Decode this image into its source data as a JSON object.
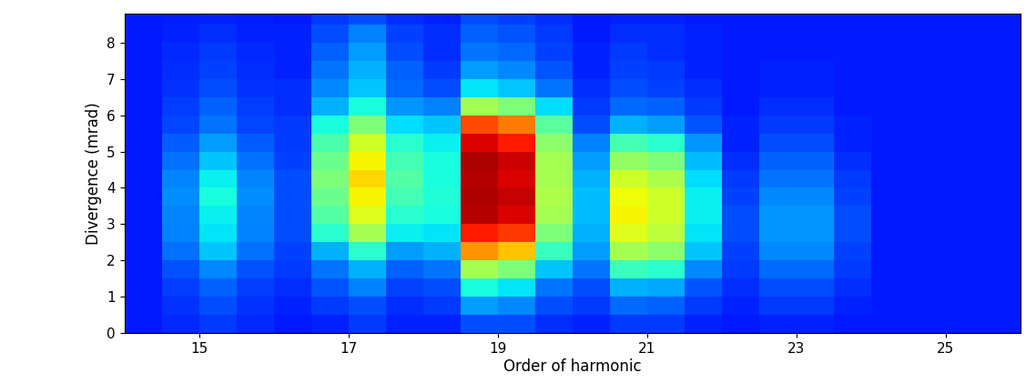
{
  "chart_data": {
    "type": "heatmap",
    "x_label": "Order of harmonic",
    "y_label": "Divergence (mrad)",
    "xlim": [
      14,
      26
    ],
    "ylim": [
      0,
      8.8
    ],
    "xticks": [
      15,
      17,
      19,
      21,
      23,
      25
    ],
    "yticks": [
      0,
      1,
      2,
      3,
      4,
      5,
      6,
      7,
      8
    ],
    "x_edges": [
      14,
      14.5,
      15,
      15.5,
      16,
      16.5,
      17,
      17.5,
      18,
      18.5,
      19,
      19.5,
      20,
      20.5,
      21,
      21.5,
      22,
      22.5,
      23,
      23.5,
      24,
      24.5,
      25,
      25.5,
      26
    ],
    "y_edges": [
      0,
      0.5,
      1,
      1.5,
      2,
      2.5,
      3,
      3.5,
      4,
      4.5,
      5,
      5.5,
      6,
      6.5,
      7,
      7.5,
      8,
      8.5,
      9
    ],
    "color_range": [
      0,
      10
    ],
    "cells_by_column": [
      [
        1.5,
        1.5,
        1.5,
        1.5,
        1.5,
        1.5,
        1.5,
        1.5,
        1.5,
        1.5,
        1.5,
        1.5,
        1.5,
        1.5,
        1.5,
        1.5,
        1.5,
        1.5
      ],
      [
        1.65,
        1.75,
        1.85,
        2.05,
        2.35,
        2.5,
        2.55,
        2.65,
        2.55,
        2.35,
        2.15,
        1.95,
        1.85,
        1.75,
        1.7,
        1.65,
        1.6,
        1.55
      ],
      [
        1.8,
        2.0,
        2.2,
        2.6,
        3.2,
        3.5,
        3.6,
        3.8,
        3.6,
        3.2,
        2.8,
        2.4,
        2.2,
        2.0,
        1.9,
        1.8,
        1.7,
        1.6
      ],
      [
        1.65,
        1.75,
        1.85,
        2.05,
        2.35,
        2.5,
        2.55,
        2.65,
        2.55,
        2.35,
        2.15,
        1.95,
        1.85,
        1.75,
        1.7,
        1.65,
        1.6,
        1.55
      ],
      [
        1.5,
        1.6,
        1.7,
        1.8,
        1.9,
        2.0,
        2.0,
        2.0,
        2.0,
        1.9,
        1.8,
        1.8,
        1.7,
        1.7,
        1.6,
        1.6,
        1.6,
        1.5
      ],
      [
        1.6,
        1.8,
        2.1,
        2.4,
        3.0,
        4.0,
        4.5,
        4.8,
        5.0,
        4.8,
        4.4,
        3.8,
        3.0,
        2.6,
        2.4,
        2.2,
        2.0,
        1.8
      ],
      [
        1.8,
        2.0,
        2.5,
        3.0,
        4.0,
        5.5,
        6.2,
        6.5,
        6.8,
        6.5,
        6.0,
        5.0,
        3.8,
        3.2,
        3.0,
        2.8,
        2.5,
        2.0
      ],
      [
        1.6,
        1.7,
        1.9,
        2.2,
        2.8,
        3.6,
        4.0,
        4.3,
        4.5,
        4.3,
        4.0,
        3.4,
        2.7,
        2.3,
        2.2,
        2.0,
        1.9,
        1.7
      ],
      [
        1.6,
        1.8,
        2.0,
        2.4,
        3.0,
        3.5,
        3.8,
        3.9,
        3.8,
        3.8,
        3.6,
        3.2,
        2.5,
        2.0,
        1.8,
        1.7,
        1.7,
        1.6
      ],
      [
        2.0,
        2.8,
        3.8,
        5.5,
        7.5,
        8.8,
        9.5,
        9.6,
        9.5,
        9.6,
        9.2,
        8.3,
        5.5,
        3.5,
        2.8,
        2.4,
        2.2,
        2.0
      ],
      [
        2.0,
        2.6,
        3.5,
        5.0,
        7.0,
        8.5,
        9.2,
        9.4,
        9.2,
        9.3,
        8.8,
        7.8,
        5.0,
        3.2,
        2.6,
        2.3,
        2.1,
        1.9
      ],
      [
        1.7,
        2.0,
        2.4,
        3.2,
        4.2,
        5.0,
        5.5,
        5.6,
        5.5,
        5.5,
        5.2,
        4.6,
        3.4,
        2.4,
        2.1,
        1.9,
        1.8,
        1.7
      ],
      [
        1.6,
        1.8,
        2.0,
        2.4,
        2.8,
        3.0,
        3.1,
        3.1,
        3.0,
        2.8,
        2.5,
        2.0,
        1.8,
        1.7,
        1.6,
        1.6,
        1.5,
        1.5
      ],
      [
        1.8,
        2.3,
        3.0,
        4.2,
        5.5,
        6.2,
        6.5,
        6.4,
        6.0,
        5.3,
        4.3,
        3.0,
        2.3,
        2.0,
        1.9,
        1.8,
        1.7,
        1.6
      ],
      [
        1.8,
        2.2,
        2.9,
        4.0,
        5.2,
        5.8,
        6.0,
        6.0,
        5.6,
        5.0,
        4.0,
        2.8,
        2.2,
        1.9,
        1.8,
        1.7,
        1.7,
        1.6
      ],
      [
        1.6,
        1.8,
        2.1,
        2.6,
        3.2,
        3.5,
        3.6,
        3.6,
        3.4,
        3.1,
        2.7,
        2.1,
        1.8,
        1.7,
        1.6,
        1.6,
        1.6,
        1.5
      ],
      [
        1.5,
        1.6,
        1.7,
        1.8,
        1.9,
        2.0,
        2.0,
        1.9,
        1.8,
        1.7,
        1.6,
        1.6,
        1.5,
        1.5,
        1.5,
        1.5,
        1.5,
        1.5
      ],
      [
        1.6,
        1.8,
        2.0,
        2.3,
        2.6,
        2.7,
        2.7,
        2.6,
        2.4,
        2.2,
        2.0,
        1.8,
        1.7,
        1.6,
        1.6,
        1.5,
        1.5,
        1.5
      ],
      [
        1.6,
        1.8,
        2.0,
        2.3,
        2.6,
        2.7,
        2.7,
        2.6,
        2.4,
        2.2,
        2.0,
        1.8,
        1.7,
        1.6,
        1.6,
        1.5,
        1.5,
        1.5
      ],
      [
        1.5,
        1.6,
        1.7,
        1.8,
        1.9,
        2.0,
        2.0,
        1.9,
        1.8,
        1.7,
        1.6,
        1.6,
        1.5,
        1.5,
        1.5,
        1.5,
        1.5,
        1.5
      ],
      [
        1.5,
        1.5,
        1.5,
        1.5,
        1.5,
        1.5,
        1.5,
        1.5,
        1.5,
        1.5,
        1.5,
        1.5,
        1.5,
        1.5,
        1.5,
        1.5,
        1.5,
        1.5
      ],
      [
        1.5,
        1.5,
        1.5,
        1.5,
        1.5,
        1.5,
        1.5,
        1.5,
        1.5,
        1.5,
        1.5,
        1.5,
        1.5,
        1.5,
        1.5,
        1.5,
        1.5,
        1.5
      ],
      [
        1.5,
        1.5,
        1.5,
        1.5,
        1.5,
        1.5,
        1.5,
        1.5,
        1.5,
        1.5,
        1.5,
        1.5,
        1.5,
        1.5,
        1.5,
        1.5,
        1.5,
        1.5
      ],
      [
        1.5,
        1.5,
        1.5,
        1.5,
        1.5,
        1.5,
        1.5,
        1.5,
        1.5,
        1.5,
        1.5,
        1.5,
        1.5,
        1.5,
        1.5,
        1.5,
        1.5,
        1.5
      ]
    ]
  }
}
